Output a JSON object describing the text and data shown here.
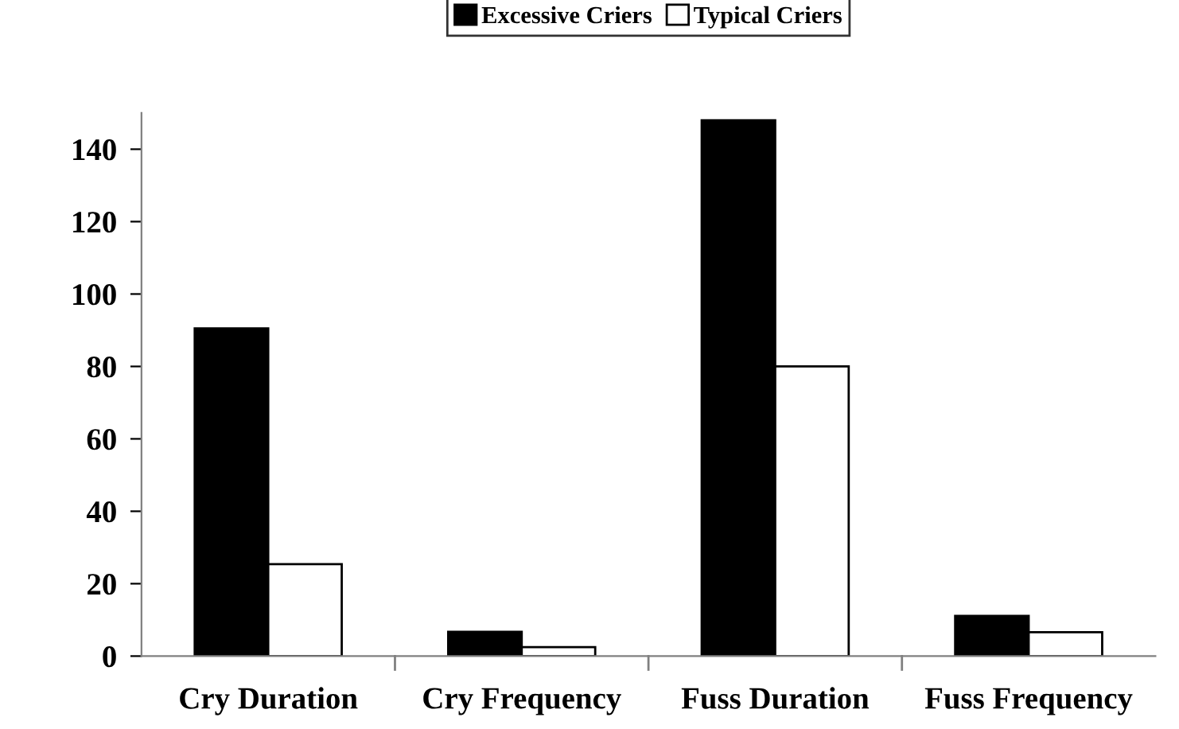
{
  "chart_data": {
    "type": "bar",
    "categories": [
      "Cry Duration",
      "Cry Frequency",
      "Fuss Duration",
      "Fuss Frequency"
    ],
    "series": [
      {
        "name": "Excessive Criers",
        "color": "#000000",
        "values": [
          90.5,
          6.7,
          148,
          11.1
        ]
      },
      {
        "name": "Typical Criers",
        "color": "#ffffff",
        "values": [
          25.4,
          2.5,
          80,
          6.6
        ]
      }
    ],
    "ylim": [
      0,
      150
    ],
    "yticks": [
      0,
      20,
      40,
      60,
      80,
      100,
      120,
      140
    ],
    "grid": false,
    "legend": "top"
  }
}
